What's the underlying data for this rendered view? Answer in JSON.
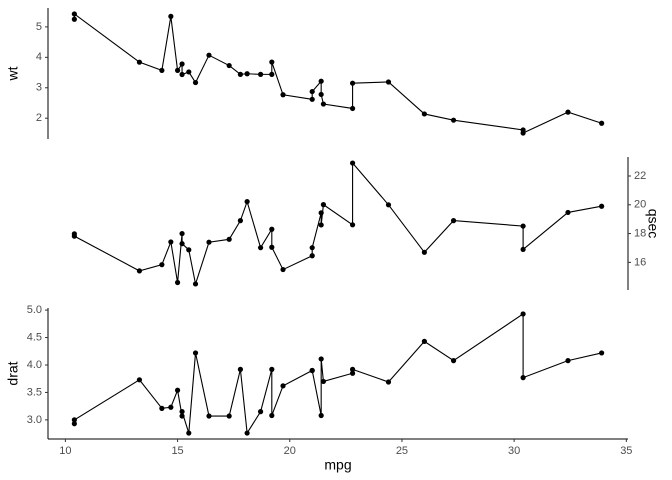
{
  "chart_data": [
    {
      "type": "line",
      "color": "#000000",
      "ylabel": "wt",
      "axis_side": "left",
      "x": [
        10.4,
        10.4,
        13.3,
        14.3,
        14.7,
        15.0,
        15.2,
        15.2,
        15.5,
        15.8,
        16.4,
        17.3,
        17.8,
        18.1,
        18.7,
        19.2,
        19.2,
        19.7,
        21.0,
        21.0,
        21.4,
        21.4,
        21.5,
        22.8,
        22.8,
        24.4,
        26.0,
        27.3,
        30.4,
        30.4,
        32.4,
        33.9
      ],
      "values": [
        5.25,
        5.424,
        3.84,
        3.57,
        5.345,
        3.57,
        3.78,
        3.435,
        3.52,
        3.17,
        4.07,
        3.73,
        3.44,
        3.46,
        3.44,
        3.44,
        3.845,
        2.77,
        2.62,
        2.875,
        3.215,
        2.78,
        2.465,
        2.32,
        3.15,
        3.19,
        2.14,
        1.935,
        1.615,
        1.513,
        2.2,
        1.835
      ],
      "xlim": [
        9.225,
        35.075
      ],
      "ylim": [
        1.317,
        5.62
      ],
      "yticks": [
        2,
        3,
        4,
        5
      ]
    },
    {
      "type": "line",
      "color": "#000000",
      "ylabel": "qsec",
      "axis_side": "right",
      "x": [
        10.4,
        10.4,
        13.3,
        14.3,
        14.7,
        15.0,
        15.2,
        15.2,
        15.5,
        15.8,
        16.4,
        17.3,
        17.8,
        18.1,
        18.7,
        19.2,
        19.2,
        19.7,
        21.0,
        21.0,
        21.4,
        21.4,
        21.5,
        22.8,
        22.8,
        24.4,
        26.0,
        27.3,
        30.4,
        30.4,
        32.4,
        33.9
      ],
      "values": [
        17.98,
        17.82,
        15.41,
        15.84,
        17.42,
        14.6,
        18.0,
        17.3,
        16.87,
        14.5,
        17.4,
        17.6,
        18.9,
        20.22,
        17.02,
        18.3,
        17.05,
        15.5,
        16.46,
        17.02,
        19.44,
        18.6,
        20.01,
        18.61,
        22.9,
        20.0,
        16.7,
        18.9,
        18.52,
        16.9,
        19.47,
        19.9
      ],
      "xlim": [
        9.225,
        35.075
      ],
      "ylim": [
        14.08,
        23.32
      ],
      "yticks": [
        16,
        18,
        20,
        22
      ]
    },
    {
      "type": "line",
      "color": "#000000",
      "ylabel": "drat",
      "xlabel": "mpg",
      "axis_side": "left",
      "x": [
        10.4,
        10.4,
        13.3,
        14.3,
        14.7,
        15.0,
        15.2,
        15.2,
        15.5,
        15.8,
        16.4,
        17.3,
        17.8,
        18.1,
        18.7,
        19.2,
        19.2,
        19.7,
        21.0,
        21.0,
        21.4,
        21.4,
        21.5,
        22.8,
        22.8,
        24.4,
        26.0,
        27.3,
        30.4,
        30.4,
        32.4,
        33.9
      ],
      "values": [
        2.93,
        3.0,
        3.73,
        3.21,
        3.23,
        3.54,
        3.07,
        3.15,
        2.76,
        4.22,
        3.07,
        3.07,
        3.92,
        2.76,
        3.15,
        3.92,
        3.08,
        3.62,
        3.9,
        3.9,
        3.08,
        4.11,
        3.7,
        3.85,
        3.92,
        3.69,
        4.43,
        4.08,
        4.93,
        3.77,
        4.08,
        4.22
      ],
      "xlim": [
        9.225,
        35.075
      ],
      "ylim": [
        2.6515,
        5.0385
      ],
      "yticks": [
        {
          "value": 3,
          "label": "3.0"
        },
        {
          "value": 3.5,
          "label": "3.5"
        },
        {
          "value": 4,
          "label": "4.0"
        },
        {
          "value": 4.5,
          "label": "4.5"
        },
        {
          "value": 5,
          "label": "5.0"
        }
      ],
      "xticks": [
        10,
        15,
        20,
        25,
        30,
        35
      ]
    }
  ]
}
